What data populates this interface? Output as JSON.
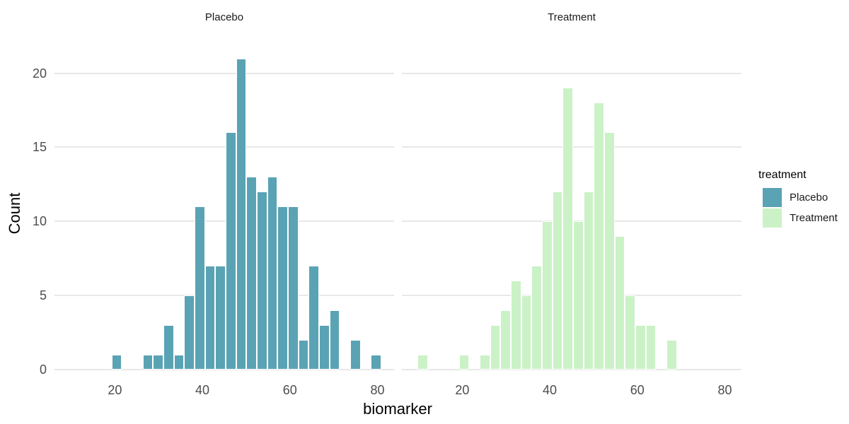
{
  "chart_data": {
    "type": "bar",
    "subtype": "faceted-histogram",
    "xlabel": "biomarker",
    "ylabel": "Count",
    "x_ticks": [
      20,
      40,
      60,
      80
    ],
    "y_ticks": [
      0,
      5,
      10,
      15,
      20
    ],
    "xlim": [
      6.2,
      83.8
    ],
    "ylim": [
      0,
      22.1
    ],
    "binwidth": 2.37,
    "grid": "horizontal-major-only",
    "background": "#ffffff",
    "gridline_color": "#e8e8e8",
    "tick_label_color": "#4d4d4d",
    "legend": {
      "title": "treatment",
      "position": "right",
      "items": [
        {
          "label": "Placebo",
          "color": "#5aa3b4"
        },
        {
          "label": "Treatment",
          "color": "#cbf2c6"
        }
      ]
    },
    "facets": [
      {
        "strip_label": "Placebo",
        "fill": "#5aa3b4",
        "bins": [
          [
            19.25,
            1
          ],
          [
            26.36,
            1
          ],
          [
            28.73,
            1
          ],
          [
            31.1,
            3
          ],
          [
            33.47,
            1
          ],
          [
            35.84,
            5
          ],
          [
            38.21,
            11
          ],
          [
            40.58,
            7
          ],
          [
            42.95,
            7
          ],
          [
            45.32,
            16
          ],
          [
            47.69,
            21
          ],
          [
            50.06,
            13
          ],
          [
            52.43,
            12
          ],
          [
            54.8,
            13
          ],
          [
            57.17,
            11
          ],
          [
            59.54,
            11
          ],
          [
            61.91,
            2
          ],
          [
            64.28,
            7
          ],
          [
            66.65,
            3
          ],
          [
            69.02,
            4
          ],
          [
            73.76,
            2
          ],
          [
            78.5,
            1
          ]
        ]
      },
      {
        "strip_label": "Treatment",
        "fill": "#cbf2c6",
        "bins": [
          [
            9.77,
            1
          ],
          [
            19.25,
            1
          ],
          [
            23.99,
            1
          ],
          [
            26.36,
            3
          ],
          [
            28.73,
            4
          ],
          [
            31.1,
            6
          ],
          [
            33.47,
            5
          ],
          [
            35.84,
            7
          ],
          [
            38.21,
            10
          ],
          [
            40.58,
            12
          ],
          [
            42.95,
            19
          ],
          [
            45.32,
            10
          ],
          [
            47.69,
            12
          ],
          [
            50.06,
            18
          ],
          [
            52.43,
            16
          ],
          [
            54.8,
            9
          ],
          [
            57.17,
            5
          ],
          [
            59.54,
            3
          ],
          [
            61.91,
            3
          ],
          [
            66.65,
            2
          ]
        ]
      }
    ]
  }
}
